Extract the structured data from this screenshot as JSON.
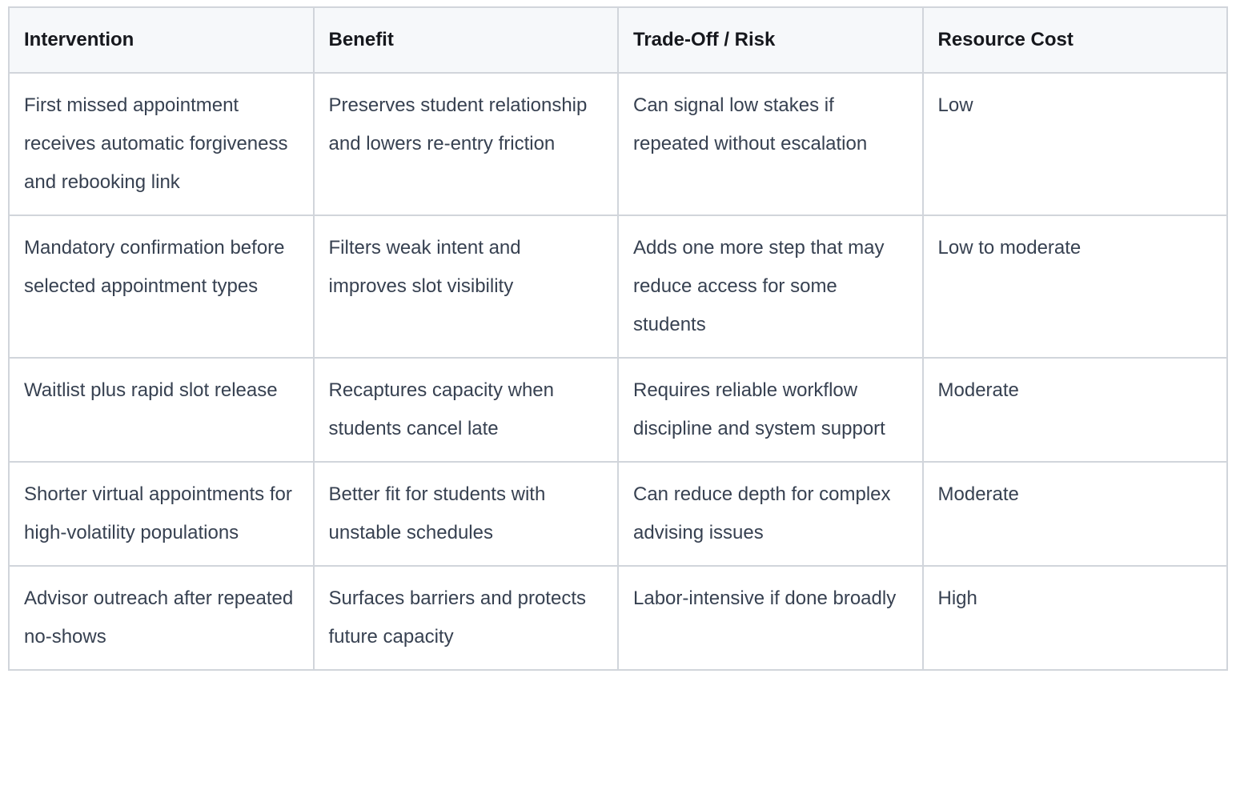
{
  "table": {
    "columns": [
      "Intervention",
      "Benefit",
      "Trade-Off / Risk",
      "Resource Cost"
    ],
    "rows": [
      [
        "First missed appointment receives automatic forgiveness and rebooking link",
        "Preserves student relationship and lowers re-entry friction",
        "Can signal low stakes if repeated without escalation",
        "Low"
      ],
      [
        "Mandatory confirmation before selected appointment types",
        "Filters weak intent and improves slot visibility",
        "Adds one more step that may reduce access for some students",
        "Low to moderate"
      ],
      [
        "Waitlist plus rapid slot release",
        "Recaptures capacity when students cancel late",
        "Requires reliable workflow discipline and system support",
        "Moderate"
      ],
      [
        "Shorter virtual appointments for high-volatility populations",
        "Better fit for students with unstable schedules",
        "Can reduce depth for complex advising issues",
        "Moderate"
      ],
      [
        "Advisor outreach after repeated no-shows",
        "Surfaces barriers and protects future capacity",
        "Labor-intensive if done broadly",
        "High"
      ]
    ]
  },
  "colors": {
    "border": "#d1d5db",
    "header_bg": "#f6f8fa",
    "header_text": "#16181d",
    "body_text": "#374151",
    "body_bg": "#ffffff"
  }
}
